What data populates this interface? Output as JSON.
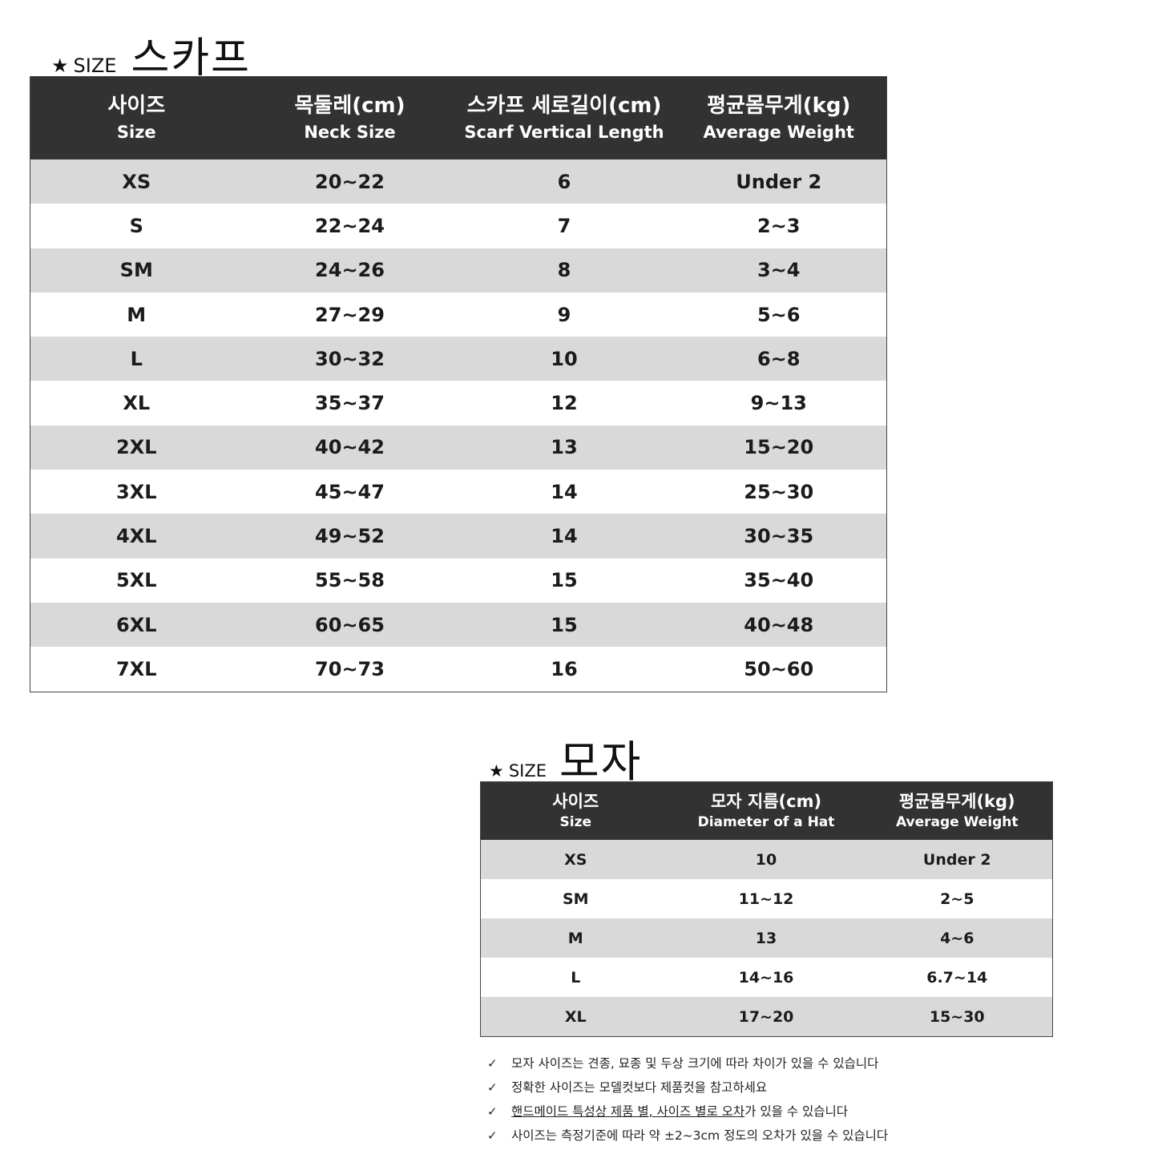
{
  "scarf": {
    "title": {
      "star": "★",
      "size_word": "SIZE",
      "name": "스카프"
    },
    "headers": [
      {
        "ko": "사이즈",
        "en": "Size"
      },
      {
        "ko": "목둘레(cm)",
        "en": "Neck Size"
      },
      {
        "ko": "스카프 세로길이(cm)",
        "en": "Scarf  Vertical Length"
      },
      {
        "ko": "평균몸무게(kg)",
        "en": "Average Weight"
      }
    ],
    "rows": [
      [
        "XS",
        "20~22",
        "6",
        "Under 2"
      ],
      [
        "S",
        "22~24",
        "7",
        "2~3"
      ],
      [
        "SM",
        "24~26",
        "8",
        "3~4"
      ],
      [
        "M",
        "27~29",
        "9",
        "5~6"
      ],
      [
        "L",
        "30~32",
        "10",
        "6~8"
      ],
      [
        "XL",
        "35~37",
        "12",
        "9~13"
      ],
      [
        "2XL",
        "40~42",
        "13",
        "15~20"
      ],
      [
        "3XL",
        "45~47",
        "14",
        "25~30"
      ],
      [
        "4XL",
        "49~52",
        "14",
        "30~35"
      ],
      [
        "5XL",
        "55~58",
        "15",
        "35~40"
      ],
      [
        "6XL",
        "60~65",
        "15",
        "40~48"
      ],
      [
        "7XL",
        "70~73",
        "16",
        "50~60"
      ]
    ]
  },
  "hat": {
    "title": {
      "star": "★",
      "size_word": "SIZE",
      "name": "모자"
    },
    "headers": [
      {
        "ko": "사이즈",
        "en": "Size"
      },
      {
        "ko": "모자 지름(cm)",
        "en": "Diameter of a Hat"
      },
      {
        "ko": "평균몸무게(kg)",
        "en": "Average Weight"
      }
    ],
    "rows": [
      [
        "XS",
        "10",
        "Under 2"
      ],
      [
        "SM",
        "11~12",
        "2~5"
      ],
      [
        "M",
        "13",
        "4~6"
      ],
      [
        "L",
        "14~16",
        "6.7~14"
      ],
      [
        "XL",
        "17~20",
        "15~30"
      ]
    ]
  },
  "notes": {
    "check_icon": "check-icon",
    "check_glyph": "✓",
    "items": [
      {
        "text": "모자 사이즈는 견종, 묘종 및 두상 크기에 따라 차이가 있을 수 있습니다"
      },
      {
        "text": "정확한 사이즈는 모델컷보다 제품컷을 참고하세요"
      },
      {
        "underlined": "핸드메이드 특성상 제품 별, 사이즈 별로 오차",
        "text": "가 있을 수 있습니다"
      },
      {
        "text": "사이즈는 측정기준에 따라 약 ±2~3cm 정도의 오차가 있을 수 있습니다"
      }
    ]
  },
  "colors": {
    "header_bg": "#323232",
    "header_text": "#ffffff",
    "row_shaded": "#d9d9d9",
    "row_plain": "#ffffff"
  }
}
